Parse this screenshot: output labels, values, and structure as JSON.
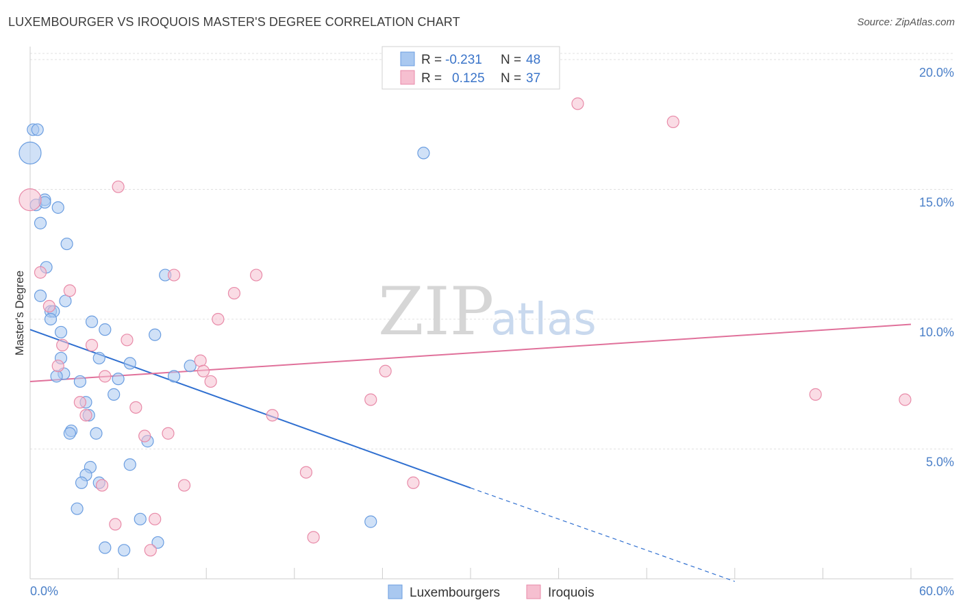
{
  "title": "LUXEMBOURGER VS IROQUOIS MASTER'S DEGREE CORRELATION CHART",
  "source": "Source: ZipAtlas.com",
  "watermark": {
    "part1": "ZIP",
    "part2": "atlas"
  },
  "legend": {
    "r_label": "R =",
    "n_label": "N =",
    "series": [
      {
        "name": "Luxembourgers",
        "r": "-0.231",
        "n": "48",
        "color": "#a9c8f0",
        "stroke": "#6a9de0"
      },
      {
        "name": "Iroquois",
        "r": "0.125",
        "n": "37",
        "color": "#f6bfd0",
        "stroke": "#e88aa8"
      }
    ]
  },
  "chart_data": {
    "type": "scatter",
    "title": "LUXEMBOURGER VS IROQUOIS MASTER'S DEGREE CORRELATION CHART",
    "xlabel": "",
    "ylabel": "Master's Degree",
    "xlim": [
      0,
      60
    ],
    "ylim": [
      0,
      20.5
    ],
    "x_tick_labels": [
      "0.0%",
      "60.0%"
    ],
    "y_ticks": [
      {
        "value": 5,
        "label": "5.0%"
      },
      {
        "value": 10,
        "label": "10.0%"
      },
      {
        "value": 15,
        "label": "15.0%"
      },
      {
        "value": 20,
        "label": "20.0%"
      }
    ],
    "series": [
      {
        "name": "Luxembourgers",
        "color": "#6a9de0",
        "points": [
          {
            "x": 0.0,
            "y": 16.4,
            "big": true
          },
          {
            "x": 0.2,
            "y": 17.3
          },
          {
            "x": 0.5,
            "y": 17.3
          },
          {
            "x": 0.4,
            "y": 14.4
          },
          {
            "x": 1.0,
            "y": 14.6
          },
          {
            "x": 1.9,
            "y": 14.3
          },
          {
            "x": 0.7,
            "y": 13.7
          },
          {
            "x": 2.5,
            "y": 12.9
          },
          {
            "x": 1.1,
            "y": 12.0
          },
          {
            "x": 0.7,
            "y": 10.9
          },
          {
            "x": 2.4,
            "y": 10.7
          },
          {
            "x": 1.4,
            "y": 10.3
          },
          {
            "x": 1.6,
            "y": 10.3
          },
          {
            "x": 1.4,
            "y": 10.0
          },
          {
            "x": 2.1,
            "y": 9.5
          },
          {
            "x": 4.2,
            "y": 9.9
          },
          {
            "x": 5.1,
            "y": 9.6
          },
          {
            "x": 8.5,
            "y": 9.4
          },
          {
            "x": 9.2,
            "y": 11.7
          },
          {
            "x": 2.1,
            "y": 8.5
          },
          {
            "x": 4.7,
            "y": 8.5
          },
          {
            "x": 6.8,
            "y": 8.3
          },
          {
            "x": 10.9,
            "y": 8.2
          },
          {
            "x": 2.3,
            "y": 7.9
          },
          {
            "x": 1.8,
            "y": 7.8
          },
          {
            "x": 3.4,
            "y": 7.6
          },
          {
            "x": 6.0,
            "y": 7.7
          },
          {
            "x": 9.8,
            "y": 7.8
          },
          {
            "x": 5.7,
            "y": 7.1
          },
          {
            "x": 3.8,
            "y": 6.8
          },
          {
            "x": 4.0,
            "y": 6.3
          },
          {
            "x": 2.8,
            "y": 5.7
          },
          {
            "x": 2.7,
            "y": 5.6
          },
          {
            "x": 4.5,
            "y": 5.6
          },
          {
            "x": 8.0,
            "y": 5.3
          },
          {
            "x": 6.8,
            "y": 4.4
          },
          {
            "x": 4.1,
            "y": 4.3
          },
          {
            "x": 3.8,
            "y": 4.0
          },
          {
            "x": 3.5,
            "y": 3.7
          },
          {
            "x": 4.7,
            "y": 3.7
          },
          {
            "x": 3.2,
            "y": 2.7
          },
          {
            "x": 7.5,
            "y": 2.3
          },
          {
            "x": 8.7,
            "y": 1.4
          },
          {
            "x": 5.1,
            "y": 1.2
          },
          {
            "x": 6.4,
            "y": 1.1
          },
          {
            "x": 26.8,
            "y": 16.4
          },
          {
            "x": 23.2,
            "y": 2.2
          },
          {
            "x": 1.0,
            "y": 14.5
          }
        ]
      },
      {
        "name": "Iroquois",
        "color": "#e88aa8",
        "points": [
          {
            "x": 0.0,
            "y": 14.6,
            "big": true
          },
          {
            "x": 6.0,
            "y": 15.1
          },
          {
            "x": 37.3,
            "y": 18.3
          },
          {
            "x": 43.8,
            "y": 17.6
          },
          {
            "x": 0.7,
            "y": 11.8
          },
          {
            "x": 2.7,
            "y": 11.1
          },
          {
            "x": 1.3,
            "y": 10.5
          },
          {
            "x": 9.8,
            "y": 11.7
          },
          {
            "x": 15.4,
            "y": 11.7
          },
          {
            "x": 13.9,
            "y": 11.0
          },
          {
            "x": 12.8,
            "y": 10.0
          },
          {
            "x": 6.6,
            "y": 9.2
          },
          {
            "x": 2.2,
            "y": 9.0
          },
          {
            "x": 4.2,
            "y": 9.0
          },
          {
            "x": 1.9,
            "y": 8.2
          },
          {
            "x": 11.6,
            "y": 8.4
          },
          {
            "x": 11.8,
            "y": 8.0
          },
          {
            "x": 5.1,
            "y": 7.8
          },
          {
            "x": 12.3,
            "y": 7.6
          },
          {
            "x": 24.2,
            "y": 8.0
          },
          {
            "x": 3.4,
            "y": 6.8
          },
          {
            "x": 7.2,
            "y": 6.6
          },
          {
            "x": 3.8,
            "y": 6.3
          },
          {
            "x": 16.5,
            "y": 6.3
          },
          {
            "x": 23.2,
            "y": 6.9
          },
          {
            "x": 53.5,
            "y": 7.1
          },
          {
            "x": 59.6,
            "y": 6.9
          },
          {
            "x": 7.8,
            "y": 5.5
          },
          {
            "x": 9.4,
            "y": 5.6
          },
          {
            "x": 18.8,
            "y": 4.1
          },
          {
            "x": 26.1,
            "y": 3.7
          },
          {
            "x": 10.5,
            "y": 3.6
          },
          {
            "x": 4.9,
            "y": 3.6
          },
          {
            "x": 5.8,
            "y": 2.1
          },
          {
            "x": 8.5,
            "y": 2.3
          },
          {
            "x": 19.3,
            "y": 1.6
          },
          {
            "x": 8.2,
            "y": 1.1
          }
        ]
      }
    ],
    "trend_lines": [
      {
        "series": "Luxembourgers",
        "x0": 0,
        "y0": 9.6,
        "x1": 30,
        "y1": 3.5,
        "dashed_to_x": 48,
        "dashed_to_y": -0.1
      },
      {
        "series": "Iroquois",
        "x0": 0,
        "y0": 7.6,
        "x1": 60,
        "y1": 9.8
      }
    ]
  }
}
